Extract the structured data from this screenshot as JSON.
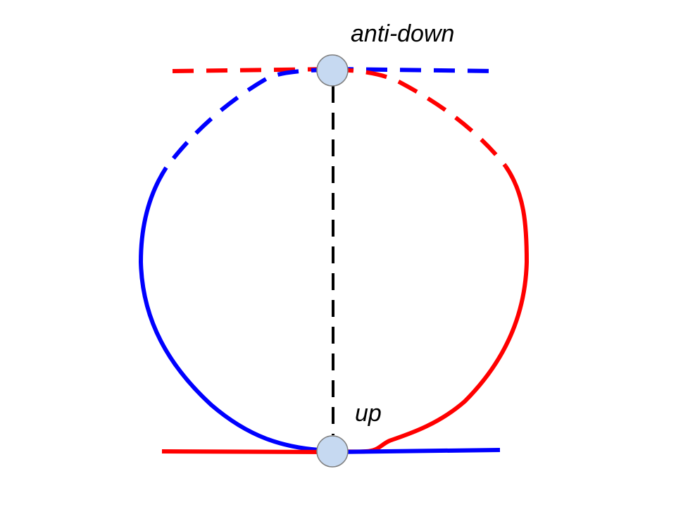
{
  "nodes": {
    "top": {
      "label": "anti-down"
    },
    "bottom": {
      "label": "up"
    }
  },
  "colors": {
    "branch_left": "#0000ff",
    "branch_right": "#ff0000",
    "axis": "#000000",
    "node_fill": "#c6d9f1",
    "node_stroke": "#7f7f7f"
  }
}
